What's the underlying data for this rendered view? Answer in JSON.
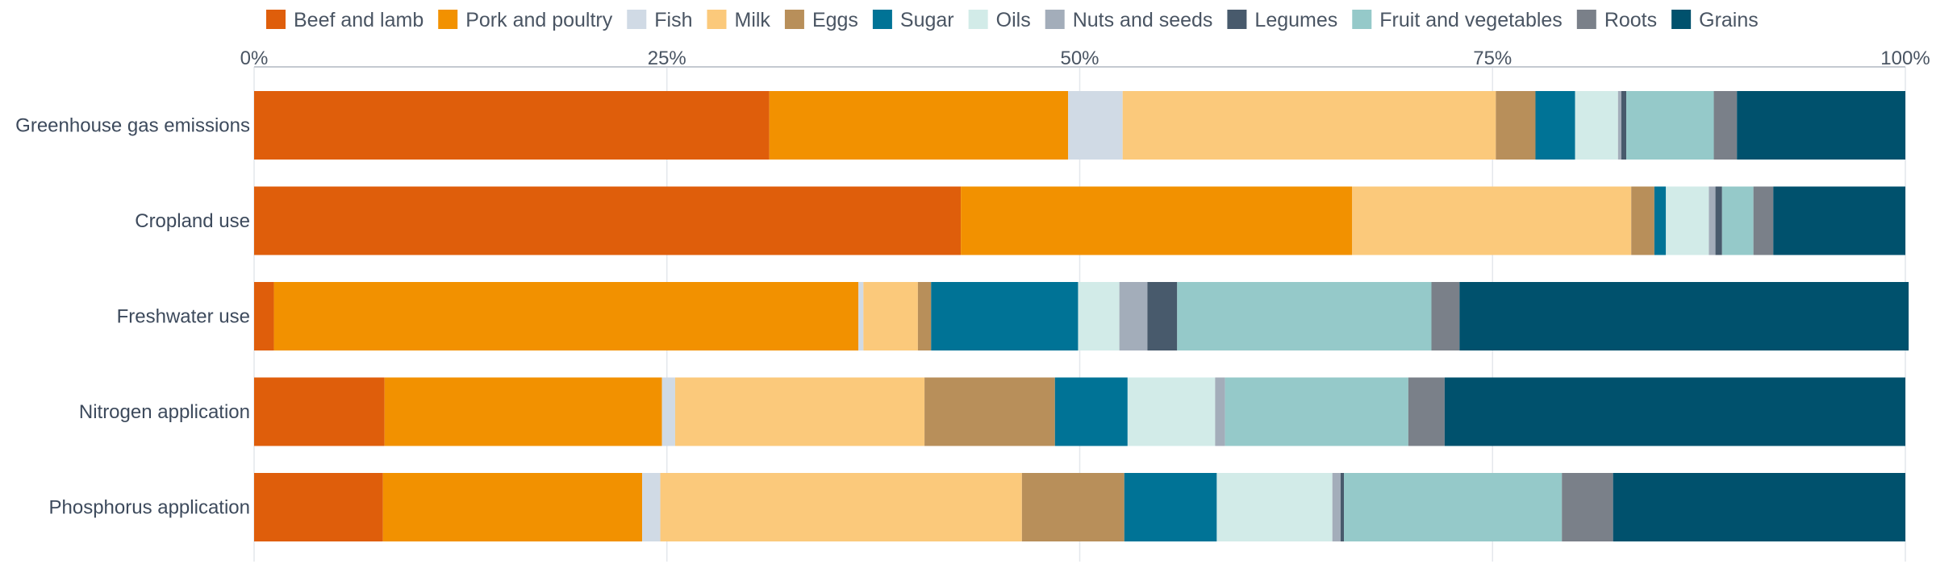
{
  "chart_data": {
    "type": "bar",
    "orientation": "horizontal",
    "stacked": true,
    "title": "",
    "xlabel": "",
    "ylabel": "",
    "xlim": [
      0,
      100
    ],
    "x_ticks": [
      0,
      25,
      50,
      75,
      100
    ],
    "x_tick_labels": [
      "0%",
      "25%",
      "50%",
      "75%",
      "100%"
    ],
    "x_axis_position": "top",
    "legend_position": "top",
    "grid": true,
    "categories": [
      "Greenhouse gas emissions",
      "Cropland use",
      "Freshwater use",
      "Nitrogen application",
      "Phosphorus application"
    ],
    "series": [
      {
        "name": "Beef and lamb",
        "color": "#df5e0b",
        "values": [
          31.2,
          42.8,
          1.2,
          7.9,
          7.8
        ]
      },
      {
        "name": "Pork and poultry",
        "color": "#f29100",
        "values": [
          18.1,
          23.7,
          35.4,
          16.8,
          15.7
        ]
      },
      {
        "name": "Fish",
        "color": "#d0dae5",
        "values": [
          3.3,
          0.0,
          0.3,
          0.8,
          1.1
        ]
      },
      {
        "name": "Milk",
        "color": "#fbc97b",
        "values": [
          22.6,
          16.9,
          3.3,
          15.1,
          21.9
        ]
      },
      {
        "name": "Eggs",
        "color": "#b88f5a",
        "values": [
          2.4,
          1.4,
          0.8,
          7.9,
          6.2
        ]
      },
      {
        "name": "Sugar",
        "color": "#007396",
        "values": [
          2.4,
          0.7,
          8.9,
          4.4,
          5.6
        ]
      },
      {
        "name": "Oils",
        "color": "#d2ebe8",
        "values": [
          2.6,
          2.6,
          2.5,
          5.3,
          7.0
        ]
      },
      {
        "name": "Nuts and seeds",
        "color": "#a3adba",
        "values": [
          0.2,
          0.4,
          1.7,
          0.6,
          0.5
        ]
      },
      {
        "name": "Legumes",
        "color": "#485a6c",
        "values": [
          0.3,
          0.4,
          1.8,
          0.0,
          0.2
        ]
      },
      {
        "name": "Fruit and vegetables",
        "color": "#95c9c9",
        "values": [
          5.3,
          1.9,
          15.4,
          11.1,
          13.2
        ]
      },
      {
        "name": "Roots",
        "color": "#7a8089",
        "values": [
          1.4,
          1.2,
          1.7,
          2.2,
          3.1
        ]
      },
      {
        "name": "Grains",
        "color": "#00516d",
        "values": [
          10.2,
          8.0,
          27.2,
          27.9,
          17.7
        ]
      }
    ]
  }
}
